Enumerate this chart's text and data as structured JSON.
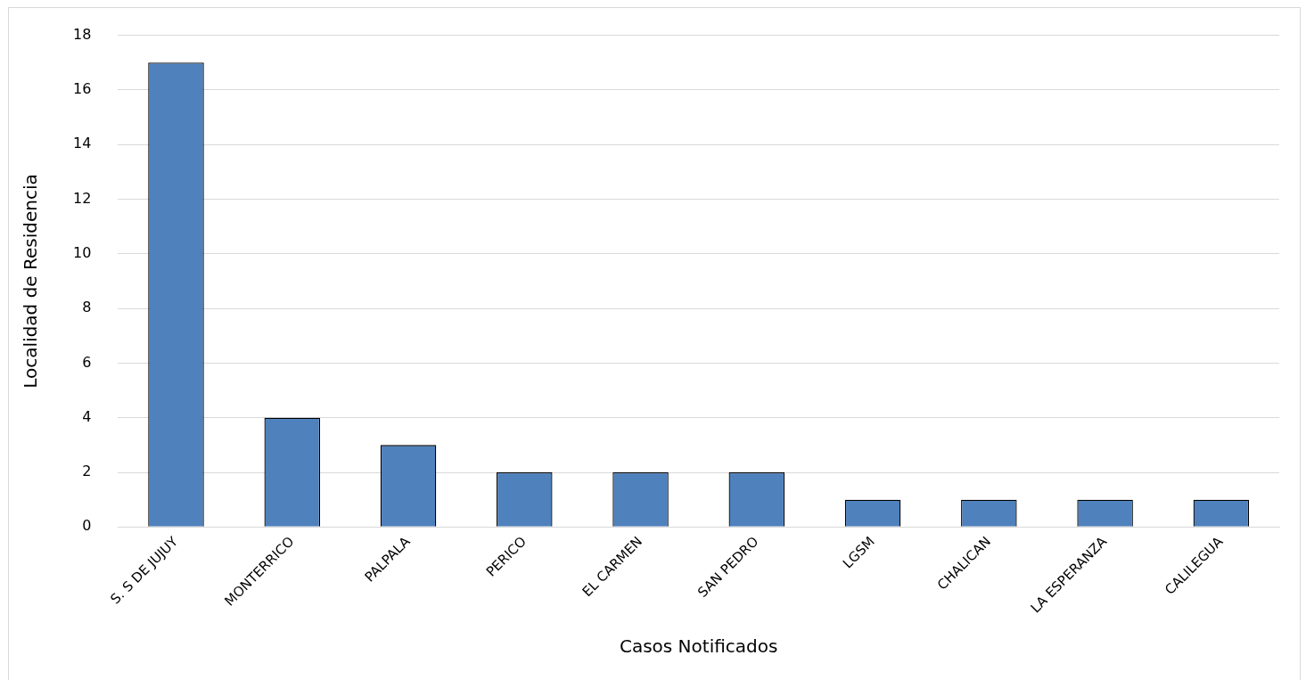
{
  "chart_data": {
    "type": "bar",
    "xlabel": "Casos Notificados",
    "ylabel": "Localidad de Residencia",
    "categories": [
      "S. S DE JUJUY",
      "MONTERRICO",
      "PALPALA",
      "PERICO",
      "EL CARMEN",
      "SAN PEDRO",
      "LGSM",
      "CHALICAN",
      "LA ESPERANZA",
      "CALILEGUA"
    ],
    "values": [
      17,
      4,
      3,
      2,
      2,
      2,
      1,
      1,
      1,
      1
    ],
    "color": "#4f81bd",
    "ylim": [
      0,
      18
    ],
    "yticks": [
      0,
      2,
      4,
      6,
      8,
      10,
      12,
      14,
      16,
      18
    ],
    "grid": "y",
    "legend": false
  }
}
